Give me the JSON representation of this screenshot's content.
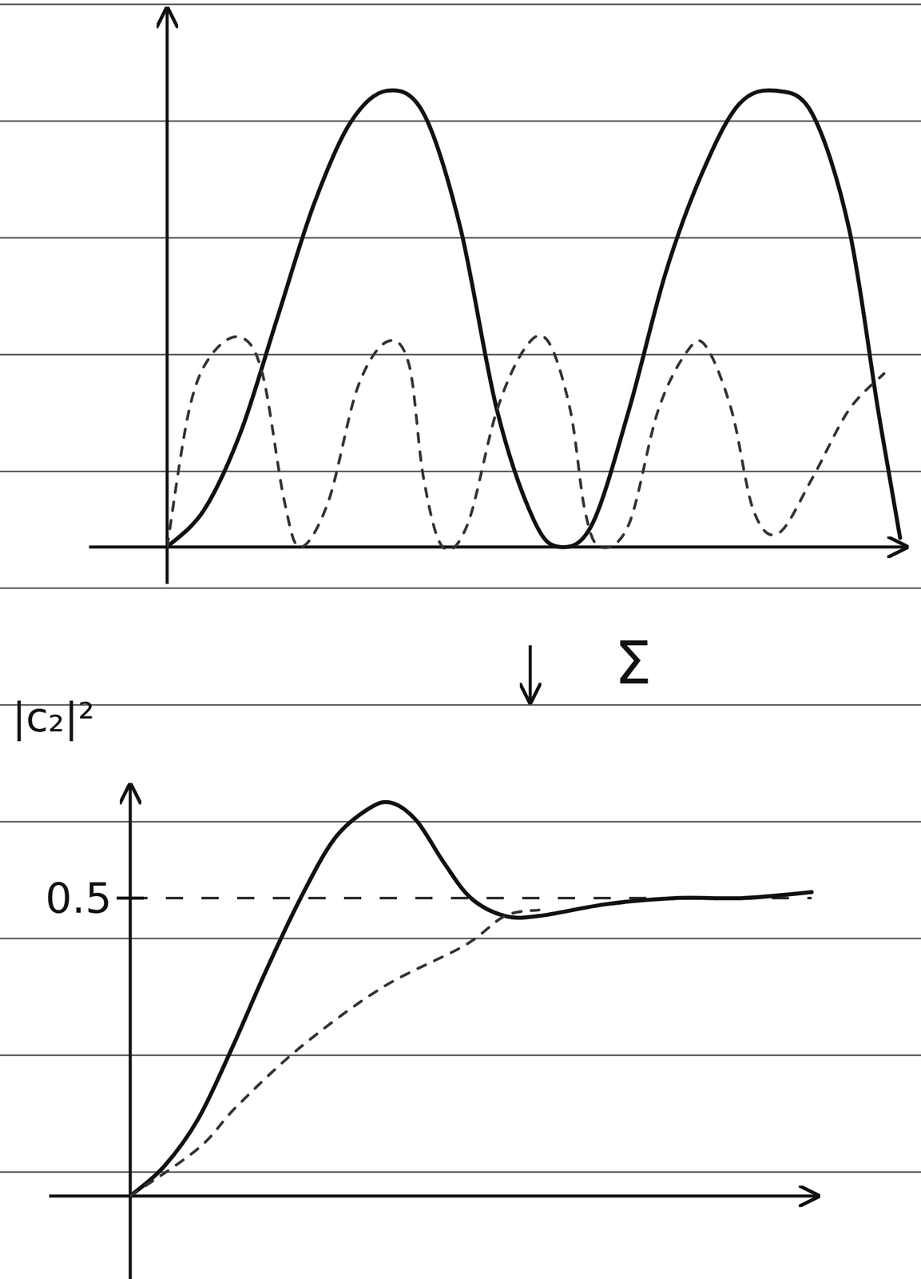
{
  "chart_data": [
    {
      "type": "line",
      "xlim": [
        0,
        10
      ],
      "ylim": [
        0,
        1.18
      ],
      "xticks": [],
      "yticks": [],
      "tick_labels": false,
      "series": [
        {
          "color": "#111111",
          "line_style": "solid",
          "x": [
            0,
            0.5,
            1,
            1.5,
            2,
            2.5,
            3,
            3.5,
            4,
            4.5,
            5,
            5.36,
            5.8,
            6.3,
            6.8,
            7.3,
            7.8,
            8.3,
            8.8,
            9.3,
            9.7,
            10
          ],
          "values": [
            0,
            0.08,
            0.25,
            0.5,
            0.75,
            0.93,
            1.0,
            0.95,
            0.7,
            0.3,
            0.06,
            0,
            0.05,
            0.3,
            0.6,
            0.82,
            0.97,
            1.0,
            0.95,
            0.7,
            0.3,
            0.02
          ]
        },
        {
          "color": "#333333",
          "line_style": "dashed",
          "x": [
            0,
            0.3,
            0.6,
            1,
            1.3,
            1.6,
            1.82,
            2.2,
            2.6,
            3,
            3.3,
            3.5,
            3.76,
            4.1,
            4.5,
            4.9,
            5.2,
            5.5,
            5.7,
            5.91,
            6.3,
            6.7,
            7.1,
            7.35,
            7.7,
            8,
            8.34,
            8.8,
            9.3,
            9.78
          ],
          "values": [
            0,
            0.3,
            0.42,
            0.46,
            0.38,
            0.1,
            0,
            0.1,
            0.35,
            0.45,
            0.4,
            0.15,
            0,
            0.05,
            0.3,
            0.44,
            0.45,
            0.3,
            0.08,
            0,
            0.05,
            0.3,
            0.43,
            0.44,
            0.3,
            0.08,
            0.03,
            0.15,
            0.3,
            0.38
          ]
        }
      ]
    },
    {
      "type": "line",
      "ylabel": "|c₂|²",
      "annotation": "Σ",
      "xlim": [
        0,
        10
      ],
      "ylim": [
        0,
        0.69
      ],
      "xticks": [],
      "yticks": [
        0.5
      ],
      "tick_labels": "y",
      "grid": true,
      "series": [
        {
          "color": "#111111",
          "line_style": "solid",
          "x": [
            0,
            0.5,
            1,
            1.5,
            2,
            2.5,
            3,
            3.5,
            3.83,
            4.2,
            4.6,
            5,
            5.5,
            6,
            7,
            8,
            9,
            10
          ],
          "values": [
            0,
            0.05,
            0.13,
            0.25,
            0.38,
            0.5,
            0.6,
            0.65,
            0.66,
            0.63,
            0.56,
            0.5,
            0.47,
            0.47,
            0.49,
            0.5,
            0.5,
            0.51
          ]
        },
        {
          "color": "#333333",
          "line_style": "dashed",
          "x": [
            0,
            1,
            1.56,
            2.5,
            3.7,
            4.9,
            5.5,
            6
          ],
          "values": [
            0,
            0.08,
            0.15,
            0.25,
            0.35,
            0.42,
            0.47,
            0.48
          ]
        }
      ]
    }
  ]
}
